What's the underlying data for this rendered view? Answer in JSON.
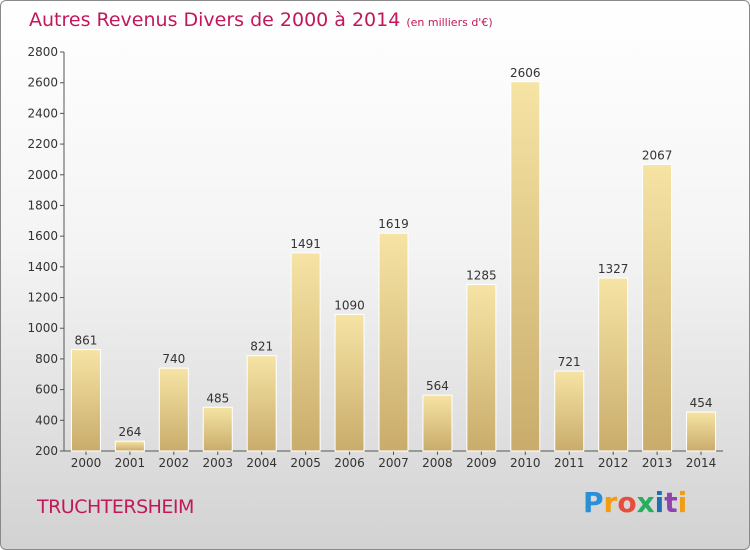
{
  "header": {
    "title": "Autres Revenus Divers de 2000 à 2014",
    "subtitle": "(en milliers d'€)"
  },
  "footer": {
    "place": "TRUCHTERSHEIM",
    "logo_letters": [
      "P",
      "r",
      "o",
      "x",
      "i",
      "t",
      "i"
    ],
    "logo_colors": [
      "#2a8fd6",
      "#f39c12",
      "#e74c3c",
      "#27ae60",
      "#1f6fb5",
      "#8e44ad",
      "#f39c12"
    ]
  },
  "chart_data": {
    "type": "bar",
    "categories": [
      "2000",
      "2001",
      "2002",
      "2003",
      "2004",
      "2005",
      "2006",
      "2007",
      "2008",
      "2009",
      "2010",
      "2011",
      "2012",
      "2013",
      "2014"
    ],
    "values": [
      861,
      264,
      740,
      485,
      821,
      1491,
      1090,
      1619,
      564,
      1285,
      2606,
      721,
      1327,
      2067,
      454
    ],
    "title": "Autres Revenus Divers de 2000 à 2014",
    "ylim": [
      200,
      2800
    ],
    "yticks": [
      200,
      400,
      600,
      800,
      1000,
      1200,
      1400,
      1600,
      1800,
      2000,
      2200,
      2400,
      2600,
      2800
    ],
    "grid": false,
    "bar_color_top": "#f6e4a4",
    "bar_color_bottom": "#c9ac6c"
  }
}
